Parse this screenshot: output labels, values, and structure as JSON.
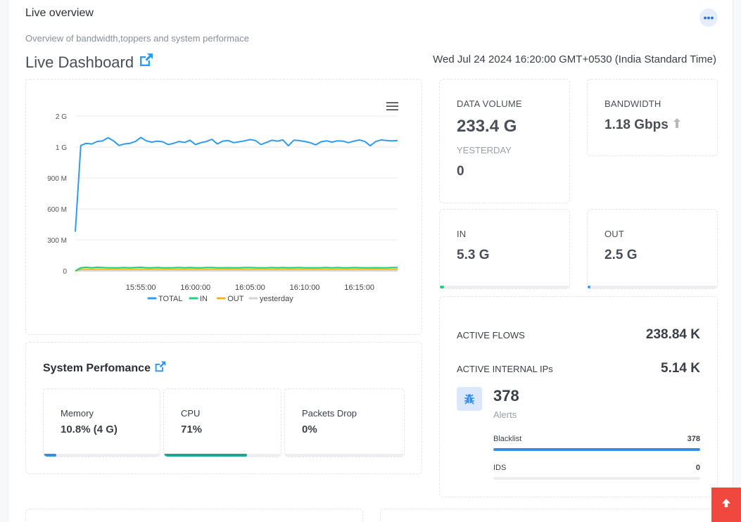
{
  "header": {
    "title": "Live overview",
    "subtitle": "Overview of bandwidth,toppers and system performace",
    "more_icon": "ellipsis-icon"
  },
  "dashboard": {
    "title": "Live Dashboard",
    "link_icon": "external-link-icon",
    "datetime": "Wed Jul 24 2024 16:20:00 GMT+0530 (India Standard Time)"
  },
  "chart_data": {
    "type": "line",
    "menu_icon": "hamburger-menu-icon",
    "x": [
      "15:49:00",
      "15:49:30",
      "15:50:00",
      "15:50:30",
      "15:51:00",
      "15:51:30",
      "15:52:00",
      "15:52:30",
      "15:53:00",
      "15:53:30",
      "15:54:00",
      "15:54:30",
      "15:55:00",
      "15:55:30",
      "15:56:00",
      "15:56:30",
      "15:57:00",
      "15:57:30",
      "15:58:00",
      "15:58:30",
      "15:59:00",
      "15:59:30",
      "16:00:00",
      "16:00:30",
      "16:01:00",
      "16:01:30",
      "16:02:00",
      "16:02:30",
      "16:03:00",
      "16:03:30",
      "16:04:00",
      "16:04:30",
      "16:05:00",
      "16:05:30",
      "16:06:00",
      "16:06:30",
      "16:07:00",
      "16:07:30",
      "16:08:00",
      "16:08:30",
      "16:09:00",
      "16:09:30",
      "16:10:00",
      "16:10:30",
      "16:11:00",
      "16:11:30",
      "16:12:00",
      "16:12:30",
      "16:13:00",
      "16:13:30",
      "16:14:00",
      "16:14:30",
      "16:15:00",
      "16:15:30",
      "16:16:00",
      "16:16:30",
      "16:17:00",
      "16:17:30",
      "16:18:00",
      "16:18:30"
    ],
    "x_ticks": [
      "15:55:00",
      "16:00:00",
      "16:05:00",
      "16:10:00",
      "16:15:00"
    ],
    "y_ticks": [
      "0",
      "300 M",
      "600 M",
      "900 M",
      "1 G",
      "2 G"
    ],
    "series": [
      {
        "name": "TOTAL",
        "color": "#2f9bef",
        "values": [
          0.38,
          1.05,
          1.12,
          1.1,
          1.18,
          1.2,
          1.3,
          1.2,
          1.05,
          1.1,
          1.12,
          1.18,
          1.31,
          1.2,
          1.16,
          1.19,
          1.17,
          1.08,
          1.12,
          1.18,
          1.15,
          1.22,
          1.08,
          1.14,
          1.18,
          1.25,
          1.1,
          1.19,
          1.21,
          1.14,
          1.17,
          1.2,
          1.24,
          1.21,
          1.08,
          1.15,
          1.22,
          1.19,
          1.23,
          1.04,
          1.22,
          1.21,
          1.18,
          1.14,
          1.07,
          1.17,
          1.2,
          1.16,
          1.2,
          1.19,
          1.14,
          1.19,
          1.23,
          1.18,
          1.04,
          1.18,
          1.23,
          1.21,
          1.2,
          1.21
        ]
      },
      {
        "name": "IN",
        "color": "#1fcf80",
        "values": [
          0.0,
          0.03,
          0.035,
          0.03,
          0.035,
          0.032,
          0.03,
          0.03,
          0.03,
          0.032,
          0.03,
          0.033,
          0.035,
          0.03,
          0.03,
          0.032,
          0.03,
          0.03,
          0.031,
          0.033,
          0.03,
          0.033,
          0.03,
          0.03,
          0.032,
          0.033,
          0.03,
          0.03,
          0.031,
          0.03,
          0.03,
          0.032,
          0.033,
          0.031,
          0.03,
          0.03,
          0.032,
          0.03,
          0.033,
          0.03,
          0.031,
          0.032,
          0.03,
          0.03,
          0.03,
          0.031,
          0.033,
          0.03,
          0.032,
          0.03,
          0.03,
          0.032,
          0.031,
          0.03,
          0.03,
          0.031,
          0.03,
          0.03,
          0.032,
          0.033
        ]
      },
      {
        "name": "OUT",
        "color": "#f5b51e",
        "values": [
          0.0,
          0.015,
          0.016,
          0.015,
          0.016,
          0.015,
          0.015,
          0.016,
          0.015,
          0.015,
          0.016,
          0.015,
          0.015,
          0.016,
          0.015,
          0.015,
          0.015,
          0.016,
          0.015,
          0.015,
          0.016,
          0.015,
          0.015,
          0.015,
          0.016,
          0.015,
          0.015,
          0.015,
          0.016,
          0.015,
          0.015,
          0.016,
          0.015,
          0.015,
          0.015,
          0.016,
          0.015,
          0.015,
          0.016,
          0.015,
          0.015,
          0.015,
          0.016,
          0.015,
          0.015,
          0.016,
          0.015,
          0.015,
          0.015,
          0.016,
          0.015,
          0.015,
          0.016,
          0.015,
          0.015,
          0.015,
          0.016,
          0.015,
          0.015,
          0.016
        ]
      },
      {
        "name": "yesterday",
        "color": "#d4d6da",
        "values": [
          0.0,
          0.0,
          0.0,
          0.0,
          0.0,
          0.0,
          0.0,
          0.0,
          0.0,
          0.0,
          0.0,
          0.0,
          0.0,
          0.0,
          0.0,
          0.0,
          0.0,
          0.0,
          0.0,
          0.0,
          0.0,
          0.0,
          0.0,
          0.0,
          0.0,
          0.0,
          0.0,
          0.0,
          0.0,
          0.0,
          0.0,
          0.0,
          0.0,
          0.0,
          0.0,
          0.0,
          0.0,
          0.0,
          0.0,
          0.0,
          0.0,
          0.0,
          0.0,
          0.0,
          0.0,
          0.0,
          0.0,
          0.0,
          0.0,
          0.0,
          0.0,
          0.0,
          0.0,
          0.0,
          0.0,
          0.0,
          0.0,
          0.0,
          0.0,
          0.0
        ]
      }
    ],
    "grid": true,
    "legend_position": "bottom"
  },
  "stats": {
    "data_volume": {
      "label": "DATA VOLUME",
      "value": "233.4 G",
      "yesterday_label": "YESTERDAY",
      "yesterday_value": "0"
    },
    "bandwidth": {
      "label": "BANDWIDTH",
      "value": "1.18 Gbps",
      "trend_icon": "arrow-up-icon"
    },
    "in": {
      "label": "IN",
      "value": "5.3 G",
      "fraction": 0.035,
      "color": "#1fcf80"
    },
    "out": {
      "label": "OUT",
      "value": "2.5 G",
      "fraction": 0.02,
      "color": "#2f9bef"
    }
  },
  "system": {
    "title": "System Perfomance",
    "link_icon": "external-link-icon",
    "cards": [
      {
        "label": "Memory",
        "value": "10.8% (4 G)",
        "fraction": 0.108,
        "color": "#2f8fef"
      },
      {
        "label": "CPU",
        "value": "71%",
        "fraction": 0.71,
        "color": "#17a88f"
      },
      {
        "label": "Packets Drop",
        "value": "0%",
        "fraction": 0.0,
        "color": "#e25b5b"
      }
    ]
  },
  "flows": {
    "active_flows_label": "ACTIVE FLOWS",
    "active_flows_value": "238.84 K",
    "internal_ips_label": "ACTIVE INTERNAL IPs",
    "internal_ips_value": "5.14 K",
    "alerts_count": "378",
    "alerts_label": "Alerts",
    "alerts_icon": "bug-icon",
    "items": [
      {
        "label": "Blacklist",
        "value": "378",
        "fraction": 1.0,
        "color": "#2f8fef"
      },
      {
        "label": "IDS",
        "value": "0",
        "fraction": 0.0,
        "color": "#2f8fef"
      }
    ]
  },
  "scroll_top_icon": "arrow-up-icon"
}
